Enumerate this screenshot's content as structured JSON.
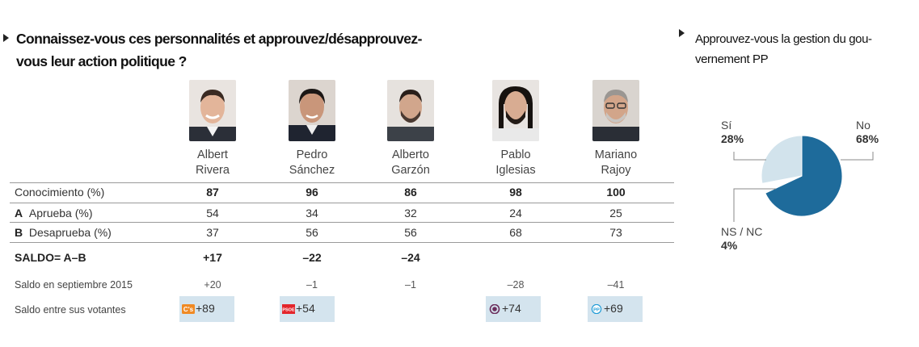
{
  "title": "Connaissez-vous ces personnalités et approuvez/désapprouvez-vous leur action politique ?",
  "title_lines": [
    "Connaissez-vous ces personnalités et approuvez/désapprouvez-",
    "vous leur action politique ?"
  ],
  "pie_title_lines": [
    "Approuvez-vous la gestion du gou-",
    "vernement PP"
  ],
  "people": [
    {
      "first": "Albert",
      "last": "Rivera"
    },
    {
      "first": "Pedro",
      "last": "Sánchez"
    },
    {
      "first": "Alberto",
      "last": "Garzón"
    },
    {
      "first": "Pablo",
      "last": "Iglesias"
    },
    {
      "first": "Mariano",
      "last": "Rajoy"
    }
  ],
  "row_labels": {
    "conocimiento": "Conocimiento (%)",
    "aprueba_letter": "A",
    "aprueba": "Aprueba (%)",
    "desaprueba_letter": "B",
    "desaprueba": "Desaprueba (%)",
    "saldo": "SALDO= A–B",
    "saldo_sept": "Saldo en septiembre 2015",
    "saldo_votantes": "Saldo entre sus votantes"
  },
  "table": {
    "conocimiento": [
      "87",
      "96",
      "86",
      "98",
      "100"
    ],
    "aprueba": [
      "54",
      "34",
      "32",
      "24",
      "25"
    ],
    "desaprueba": [
      "37",
      "56",
      "56",
      "68",
      "73"
    ],
    "saldo": [
      "+17",
      "–22",
      "–24",
      "",
      ""
    ],
    "saldo_sept": [
      "+20",
      "–1",
      "–1",
      "–28",
      "–41"
    ],
    "saldo_votantes": [
      "+89",
      "+54",
      "",
      "+74",
      "+69"
    ]
  },
  "party_logos": [
    "cs-logo",
    "psoe-logo",
    "",
    "podemos-logo",
    "pp-logo"
  ],
  "colors": {
    "pie_no": "#1e6b9b",
    "pie_si": "#d2e3ec",
    "pie_ns": "#ffffff",
    "voter_box": "#d4e4ee",
    "cs": "#f08a24",
    "psoe": "#e3262c",
    "podemos": "#6b2d5c",
    "pp": "#1c9ad6"
  },
  "chart_data": [
    {
      "type": "table",
      "columns": [
        "Albert Rivera",
        "Pedro Sánchez",
        "Alberto Garzón",
        "Pablo Iglesias",
        "Mariano Rajoy"
      ],
      "rows": [
        {
          "label": "Conocimiento (%)",
          "values": [
            87,
            96,
            86,
            98,
            100
          ]
        },
        {
          "label": "A Aprueba (%)",
          "values": [
            54,
            34,
            32,
            24,
            25
          ]
        },
        {
          "label": "B Desaprueba (%)",
          "values": [
            37,
            56,
            56,
            68,
            73
          ]
        },
        {
          "label": "SALDO= A–B",
          "values": [
            17,
            -22,
            -24,
            null,
            null
          ]
        },
        {
          "label": "Saldo en septiembre 2015",
          "values": [
            20,
            -1,
            -1,
            -28,
            -41
          ]
        },
        {
          "label": "Saldo entre sus votantes",
          "values": [
            89,
            54,
            null,
            74,
            69
          ]
        }
      ]
    },
    {
      "type": "pie",
      "title": "Approuvez-vous la gestion du gouvernement PP",
      "slices": [
        {
          "label": "No",
          "pct_label": "68%",
          "value": 68
        },
        {
          "label": "NS / NC",
          "pct_label": "4%",
          "value": 4
        },
        {
          "label": "Sí",
          "pct_label": "28%",
          "value": 28
        }
      ]
    }
  ]
}
